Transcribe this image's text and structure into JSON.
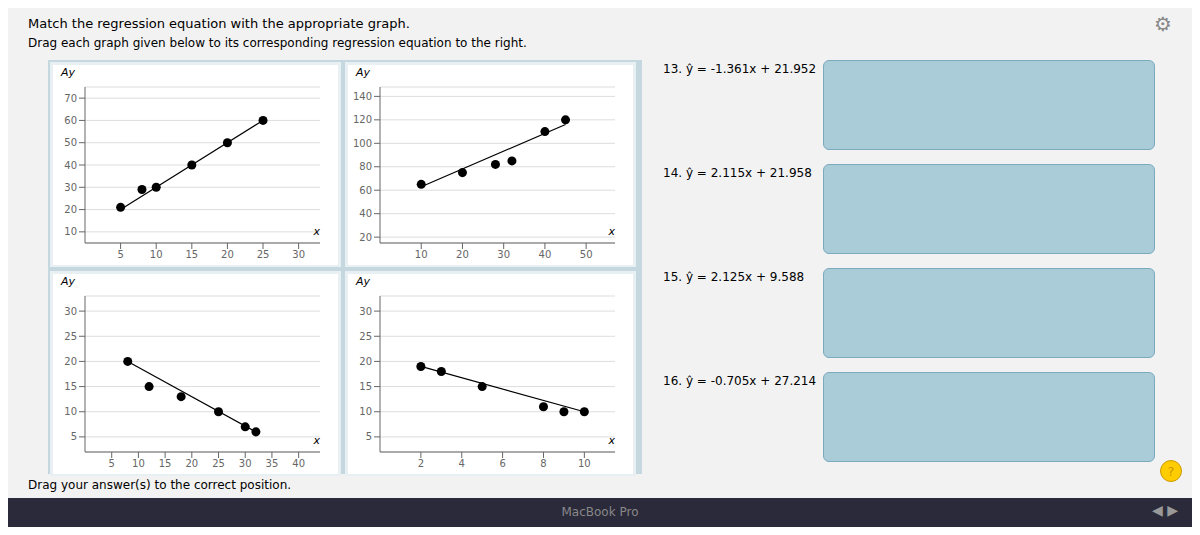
{
  "title": "Match the regression equation with the appropriate graph.",
  "subtitle": "Drag each graph given below to its corresponding regression equation to the right.",
  "annotations": [
    "13. ŷ = -1.361x + 21.952",
    "14. ŷ = 2.115x + 21.958",
    "15. ŷ = 2.125x + 9.588",
    "16. ŷ = -0.705x + 27.214"
  ],
  "footer": "Drag your answer(s) to the correct position.",
  "watermark": "MacBook Pro",
  "icons": [
    "⚙",
    "◀",
    "▶",
    "?"
  ],
  "chart_data": [
    {
      "type": "scatter",
      "xlabel": "x",
      "ylabel": "Ay",
      "xlim": [
        0,
        33
      ],
      "ylim": [
        5,
        75
      ],
      "xticks": [
        5,
        10,
        15,
        20,
        25,
        30
      ],
      "yticks": [
        10,
        20,
        30,
        40,
        50,
        60,
        70
      ],
      "grid": "y",
      "series": [
        {
          "type": "scatter",
          "color": "#000000",
          "x": [
            5,
            8,
            10,
            15,
            20,
            25
          ],
          "values": [
            21,
            29,
            30,
            40,
            50,
            60
          ]
        },
        {
          "type": "line",
          "color": "#000000",
          "x": [
            5,
            25
          ],
          "values": [
            20,
            60
          ]
        }
      ]
    },
    {
      "type": "scatter",
      "xlabel": "x",
      "ylabel": "Ay",
      "xlim": [
        0,
        57
      ],
      "ylim": [
        15,
        148
      ],
      "xticks": [
        10,
        20,
        30,
        40,
        50
      ],
      "yticks": [
        20,
        40,
        60,
        80,
        100,
        120,
        140
      ],
      "grid": "y",
      "series": [
        {
          "type": "scatter",
          "color": "#000000",
          "x": [
            10,
            20,
            28,
            32,
            40,
            45
          ],
          "values": [
            65,
            75,
            82,
            85,
            110,
            120
          ]
        },
        {
          "type": "line",
          "color": "#000000",
          "x": [
            10,
            45
          ],
          "values": [
            63,
            116
          ]
        }
      ]
    },
    {
      "type": "scatter",
      "xlabel": "x",
      "ylabel": "Ay",
      "xlim": [
        0,
        44
      ],
      "ylim": [
        2,
        33
      ],
      "xticks": [
        5,
        10,
        15,
        20,
        25,
        30,
        35,
        40
      ],
      "yticks": [
        5,
        10,
        15,
        20,
        25,
        30
      ],
      "grid": "y",
      "series": [
        {
          "type": "scatter",
          "color": "#000000",
          "x": [
            8,
            12,
            18,
            25,
            30,
            32
          ],
          "values": [
            20,
            15,
            13,
            10,
            7,
            6
          ]
        },
        {
          "type": "line",
          "color": "#000000",
          "x": [
            8,
            32
          ],
          "values": [
            20,
            6
          ]
        }
      ]
    },
    {
      "type": "scatter",
      "xlabel": "x",
      "ylabel": "Ay",
      "xlim": [
        0,
        11.5
      ],
      "ylim": [
        2,
        33
      ],
      "xticks": [
        2,
        4,
        6,
        8,
        10
      ],
      "yticks": [
        5,
        10,
        15,
        20,
        25,
        30
      ],
      "grid": "y",
      "series": [
        {
          "type": "scatter",
          "color": "#000000",
          "x": [
            2,
            3,
            5,
            8,
            9,
            10
          ],
          "values": [
            19,
            18,
            15,
            11,
            10,
            10
          ]
        },
        {
          "type": "line",
          "color": "#000000",
          "x": [
            2,
            10
          ],
          "values": [
            19,
            10
          ]
        }
      ]
    }
  ]
}
